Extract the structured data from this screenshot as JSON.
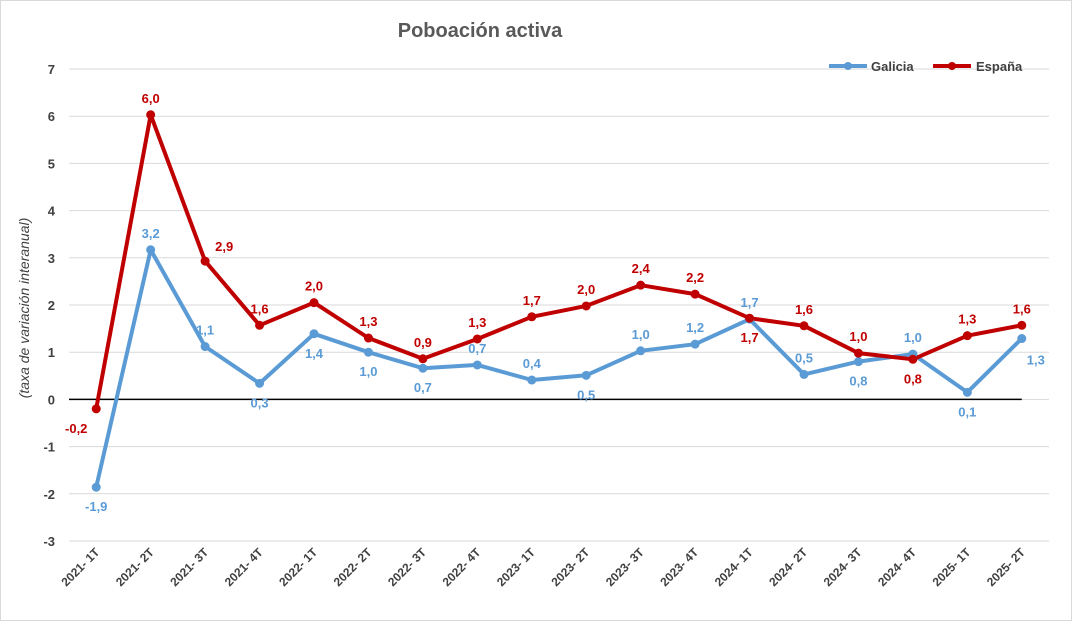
{
  "chart_data": {
    "type": "line",
    "title": "Poboación activa",
    "xlabel": "",
    "ylabel": "(taxa de variación interanual)",
    "ylim": [
      -3,
      7
    ],
    "yticks": [
      -3,
      -2,
      -1,
      0,
      1,
      2,
      3,
      4,
      5,
      6,
      7
    ],
    "grid": true,
    "legend_position": "top-right",
    "categories": [
      "2021- 1T",
      "2021- 2T",
      "2021- 3T",
      "2021- 4T",
      "2022- 1T",
      "2022- 2T",
      "2022- 3T",
      "2022- 4T",
      "2023- 1T",
      "2023- 2T",
      "2023- 3T",
      "2023- 4T",
      "2024- 1T",
      "2024- 2T",
      "2024- 3T",
      "2024- 4T",
      "2025- 1T",
      "2025- 2T"
    ],
    "series": [
      {
        "name": "Galicia",
        "color": "#5b9bd5",
        "values": [
          -1.86,
          3.17,
          1.12,
          0.34,
          1.39,
          1.0,
          0.66,
          0.73,
          0.41,
          0.51,
          1.03,
          1.17,
          1.7,
          0.53,
          0.8,
          0.96,
          0.15,
          1.29
        ],
        "labels": [
          "-1,9",
          "3,2",
          "1,1",
          "0,3",
          "1,4",
          "1,0",
          "0,7",
          "0,7",
          "0,4",
          "0,5",
          "1,0",
          "1,2",
          "1,7",
          "0,5",
          "0,8",
          "1,0",
          "0,1",
          "1,3"
        ]
      },
      {
        "name": "España",
        "color": "#c00000",
        "values": [
          -0.2,
          6.03,
          2.93,
          1.57,
          2.05,
          1.3,
          0.86,
          1.28,
          1.75,
          1.98,
          2.42,
          2.23,
          1.72,
          1.56,
          0.98,
          0.85,
          1.35,
          1.57
        ],
        "labels": [
          "-0,2",
          "6,0",
          "2,9",
          "1,6",
          "2,0",
          "1,3",
          "0,9",
          "1,3",
          "1,7",
          "2,0",
          "2,4",
          "2,2",
          "1,7",
          "1,6",
          "1,0",
          "0,8",
          "1,3",
          "1,6"
        ]
      }
    ]
  }
}
